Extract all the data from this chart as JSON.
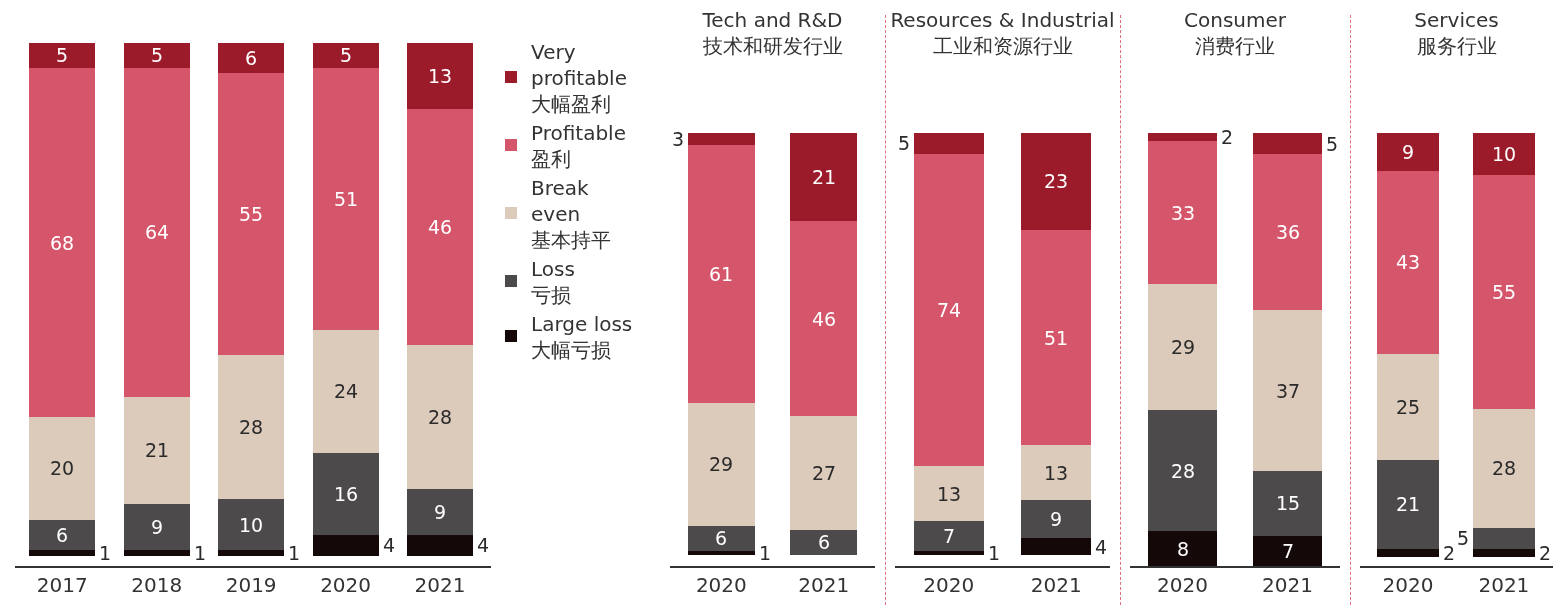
{
  "chart_data": [
    {
      "type": "bar",
      "stacked": true,
      "data_labels": true,
      "grid": false,
      "legend": "right",
      "categories": [
        "2017",
        "2018",
        "2019",
        "2020",
        "2021"
      ],
      "series": [
        {
          "name": "Large loss\n大幅亏损",
          "color": "#150808",
          "values": [
            1,
            1,
            1,
            4,
            4
          ]
        },
        {
          "name": "Loss\n亏损",
          "color": "#4d4a4b",
          "values": [
            6,
            9,
            10,
            16,
            9
          ]
        },
        {
          "name": "Break\neven\n基本持平",
          "color": "#dccabb",
          "values": [
            20,
            21,
            28,
            24,
            28
          ]
        },
        {
          "name": "Profitable\n盈利",
          "color": "#d5566b",
          "values": [
            68,
            64,
            55,
            51,
            46
          ]
        },
        {
          "name": "Very\nprofitable\n大幅盈利",
          "color": "#9b1b2a",
          "values": [
            5,
            5,
            6,
            5,
            13
          ]
        }
      ]
    },
    {
      "type": "bar",
      "stacked": true,
      "data_labels": true,
      "grid": false,
      "legend": false,
      "title": "Tech and R&D\n技术和研发行业",
      "categories": [
        "2020",
        "2021"
      ],
      "series": [
        {
          "color": "#150808",
          "values": [
            1,
            null
          ]
        },
        {
          "color": "#4d4a4b",
          "values": [
            6,
            6
          ]
        },
        {
          "color": "#dccabb",
          "values": [
            29,
            27
          ]
        },
        {
          "color": "#d5566b",
          "values": [
            61,
            46
          ]
        },
        {
          "color": "#9b1b2a",
          "values": [
            3,
            21
          ]
        }
      ]
    },
    {
      "type": "bar",
      "stacked": true,
      "data_labels": true,
      "grid": false,
      "legend": false,
      "title": "Resources & Industrial\n工业和资源行业",
      "categories": [
        "2020",
        "2021"
      ],
      "series": [
        {
          "color": "#150808",
          "values": [
            1,
            4
          ]
        },
        {
          "color": "#4d4a4b",
          "values": [
            7,
            9
          ]
        },
        {
          "color": "#dccabb",
          "values": [
            13,
            13
          ]
        },
        {
          "color": "#d5566b",
          "values": [
            74,
            51
          ]
        },
        {
          "color": "#9b1b2a",
          "values": [
            5,
            23
          ]
        }
      ]
    },
    {
      "type": "bar",
      "stacked": true,
      "data_labels": true,
      "grid": false,
      "legend": false,
      "title": "Consumer\n消费行业",
      "categories": [
        "2020",
        "2021"
      ],
      "series": [
        {
          "color": "#150808",
          "values": [
            8,
            7
          ]
        },
        {
          "color": "#4d4a4b",
          "values": [
            28,
            15
          ]
        },
        {
          "color": "#dccabb",
          "values": [
            29,
            37
          ]
        },
        {
          "color": "#d5566b",
          "values": [
            33,
            36
          ]
        },
        {
          "color": "#9b1b2a",
          "values": [
            2,
            5
          ]
        }
      ]
    },
    {
      "type": "bar",
      "stacked": true,
      "data_labels": true,
      "grid": false,
      "legend": false,
      "title": "Services\n服务行业",
      "categories": [
        "2020",
        "2021"
      ],
      "series": [
        {
          "color": "#150808",
          "values": [
            2,
            2
          ]
        },
        {
          "color": "#4d4a4b",
          "values": [
            21,
            5
          ]
        },
        {
          "color": "#dccabb",
          "values": [
            25,
            28
          ]
        },
        {
          "color": "#d5566b",
          "values": [
            43,
            55
          ]
        },
        {
          "color": "#9b1b2a",
          "values": [
            9,
            10
          ]
        }
      ]
    }
  ]
}
